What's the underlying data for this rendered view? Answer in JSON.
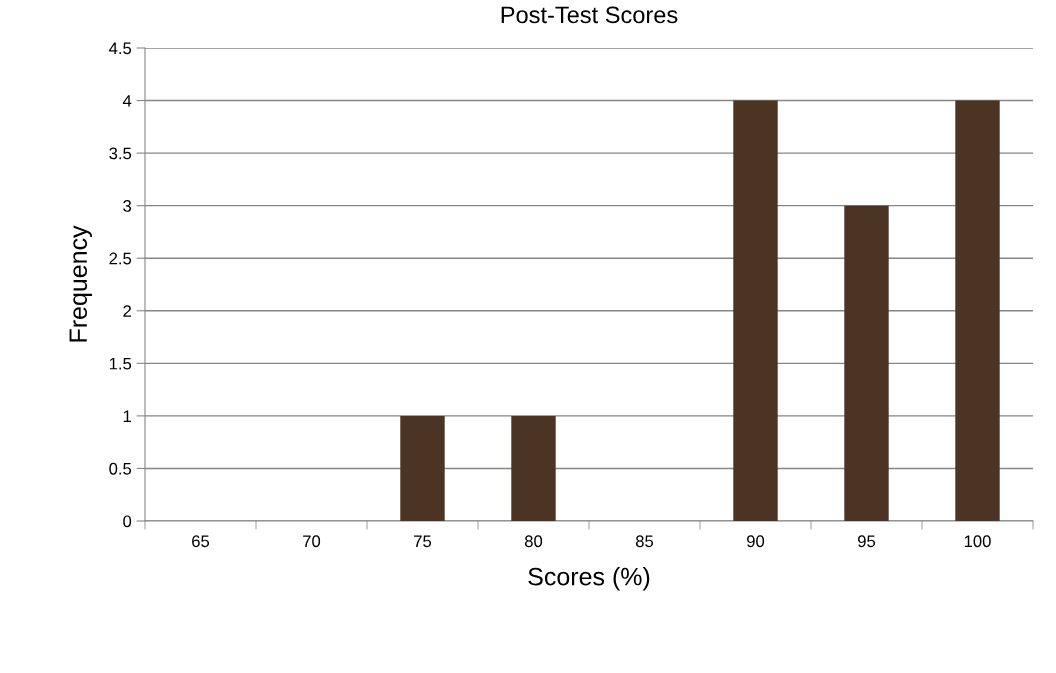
{
  "chart_data": {
    "type": "bar",
    "title": "Post-Test Scores",
    "xlabel": "Scores (%)",
    "ylabel": "Frequency",
    "categories": [
      "65",
      "70",
      "75",
      "80",
      "85",
      "90",
      "95",
      "100"
    ],
    "values": [
      0,
      0,
      1,
      1,
      0,
      4,
      3,
      4
    ],
    "color": "#4b3423",
    "ylim": [
      0,
      4.5
    ],
    "yticks": [
      0,
      0.5,
      1,
      1.5,
      2,
      2.5,
      3,
      3.5,
      4,
      4.5
    ],
    "grid": "y",
    "legend": false
  }
}
